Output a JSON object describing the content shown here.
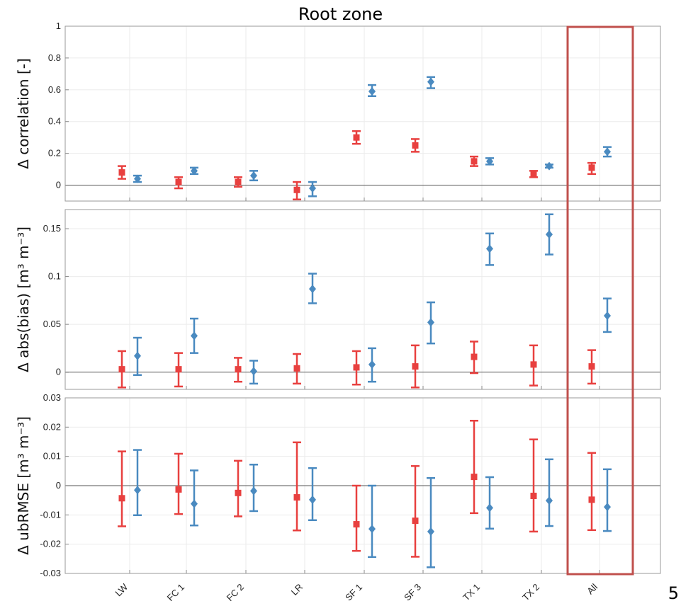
{
  "slide_number": "5",
  "chart_data": {
    "type": "scatter",
    "title": "Root zone",
    "categories": [
      "LW",
      "FC 1",
      "FC 2",
      "LR",
      "SF 1",
      "SF 3",
      "TX 1",
      "TX 2",
      "All"
    ],
    "highlighted_category": "All",
    "colors": {
      "red": "#e8403f",
      "blue": "#4a8ac0",
      "highlight_box": "#c0504d"
    },
    "panels": [
      {
        "ylabel": "Δ correlation [-]",
        "ylim": [
          -0.1,
          1.0
        ],
        "yticks": [
          "1",
          "0.8",
          "0.6",
          "0.4",
          "0.2",
          "0"
        ],
        "ytick_values": [
          1,
          0.8,
          0.6,
          0.4,
          0.2,
          0
        ],
        "series": [
          {
            "marker": "square",
            "color": "#e8403f",
            "values": [
              0.08,
              0.02,
              0.02,
              -0.03,
              0.3,
              0.25,
              0.15,
              0.07,
              0.11
            ],
            "lower": [
              0.04,
              -0.02,
              -0.01,
              -0.09,
              0.26,
              0.21,
              0.12,
              0.05,
              0.07
            ],
            "upper": [
              0.12,
              0.05,
              0.05,
              0.02,
              0.34,
              0.29,
              0.18,
              0.09,
              0.14
            ]
          },
          {
            "marker": "diamond",
            "color": "#4a8ac0",
            "values": [
              0.04,
              0.09,
              0.06,
              -0.02,
              0.59,
              0.65,
              0.15,
              0.12,
              0.21
            ],
            "lower": [
              0.02,
              0.07,
              0.03,
              -0.07,
              0.56,
              0.61,
              0.13,
              0.11,
              0.18
            ],
            "upper": [
              0.06,
              0.11,
              0.09,
              0.02,
              0.63,
              0.68,
              0.17,
              0.13,
              0.24
            ]
          }
        ]
      },
      {
        "ylabel": "Δ abs(bias) [m³ m⁻³]",
        "ylim": [
          -0.018,
          0.17
        ],
        "yticks": [
          "0.15",
          "0.1",
          "0.05",
          "0"
        ],
        "ytick_values": [
          0.15,
          0.1,
          0.05,
          0
        ],
        "series": [
          {
            "marker": "square",
            "color": "#e8403f",
            "values": [
              0.003,
              0.003,
              0.003,
              0.004,
              0.005,
              0.006,
              0.016,
              0.008,
              0.006
            ],
            "lower": [
              -0.016,
              -0.015,
              -0.01,
              -0.012,
              -0.013,
              -0.016,
              -0.001,
              -0.014,
              -0.012
            ],
            "upper": [
              0.022,
              0.02,
              0.015,
              0.019,
              0.022,
              0.028,
              0.032,
              0.028,
              0.023
            ]
          },
          {
            "marker": "diamond",
            "color": "#4a8ac0",
            "values": [
              0.017,
              0.038,
              0.001,
              0.087,
              0.008,
              0.052,
              0.129,
              0.144,
              0.059
            ],
            "lower": [
              -0.003,
              0.02,
              -0.012,
              0.072,
              -0.01,
              0.03,
              0.112,
              0.123,
              0.042
            ],
            "upper": [
              0.036,
              0.056,
              0.012,
              0.103,
              0.025,
              0.073,
              0.145,
              0.165,
              0.077
            ]
          }
        ]
      },
      {
        "ylabel": "Δ ubRMSE [m³ m⁻³]",
        "ylim": [
          -0.03,
          0.03
        ],
        "yticks": [
          "0.03",
          "0.02",
          "0.01",
          "0",
          "-0.01",
          "-0.02",
          "-0.03"
        ],
        "ytick_values": [
          0.03,
          0.02,
          0.01,
          0,
          -0.01,
          -0.02,
          -0.03
        ],
        "series": [
          {
            "marker": "square",
            "color": "#e8403f",
            "values": [
              -0.0043,
              -0.0013,
              -0.0025,
              -0.004,
              -0.0132,
              -0.012,
              0.003,
              -0.0035,
              -0.0048
            ],
            "lower": [
              -0.0139,
              -0.0097,
              -0.0105,
              -0.0153,
              -0.0223,
              -0.0243,
              -0.0094,
              -0.0157,
              -0.0152
            ],
            "upper": [
              0.0117,
              0.0109,
              0.0085,
              0.0148,
              0.0,
              0.0067,
              0.0222,
              0.0158,
              0.0112
            ]
          },
          {
            "marker": "diamond",
            "color": "#4a8ac0",
            "values": [
              -0.0015,
              -0.0062,
              -0.0018,
              -0.0048,
              -0.0148,
              -0.0157,
              -0.0076,
              -0.0051,
              -0.0073
            ],
            "lower": [
              -0.0101,
              -0.0136,
              -0.0087,
              -0.0118,
              -0.0244,
              -0.0279,
              -0.0147,
              -0.0138,
              -0.0155
            ],
            "upper": [
              0.0122,
              0.0052,
              0.0072,
              0.006,
              0.0,
              0.0026,
              0.0029,
              0.009,
              0.0056
            ]
          }
        ]
      }
    ]
  }
}
